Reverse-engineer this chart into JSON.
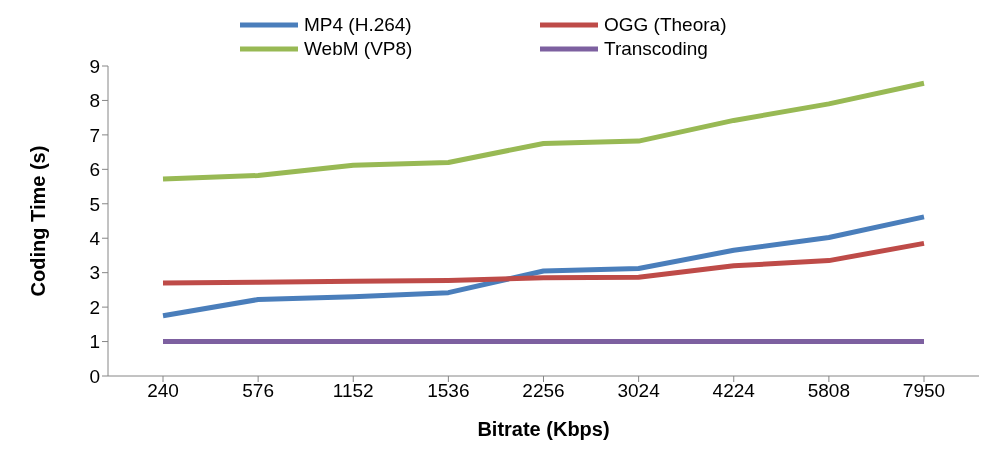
{
  "chart_data": {
    "type": "line",
    "xlabel": "Bitrate (Kbps)",
    "ylabel": "Coding Time (s)",
    "categories": [
      "240",
      "576",
      "1152",
      "1536",
      "2256",
      "3024",
      "4224",
      "5808",
      "7950"
    ],
    "series": [
      {
        "name": "MP4 (H.264)",
        "color": "#4a7ebb",
        "values": [
          1.75,
          2.22,
          2.3,
          2.42,
          3.05,
          3.12,
          3.65,
          4.02,
          4.62
        ]
      },
      {
        "name": "OGG (Theora)",
        "color": "#be4b48",
        "values": [
          2.7,
          2.72,
          2.75,
          2.77,
          2.85,
          2.87,
          3.2,
          3.35,
          3.85
        ]
      },
      {
        "name": "WebM (VP8)",
        "color": "#98b954",
        "values": [
          5.72,
          5.82,
          6.12,
          6.2,
          6.75,
          6.82,
          7.42,
          7.9,
          8.5
        ]
      },
      {
        "name": "Transcoding",
        "color": "#7d60a0",
        "values": [
          1,
          1,
          1,
          1,
          1,
          1,
          1,
          1,
          1
        ]
      }
    ],
    "ylim": [
      0,
      9
    ],
    "yticks": [
      0,
      1,
      2,
      3,
      4,
      5,
      6,
      7,
      8,
      9
    ],
    "grid": false,
    "legend": "top",
    "marker": "none",
    "line_style": "solid"
  }
}
